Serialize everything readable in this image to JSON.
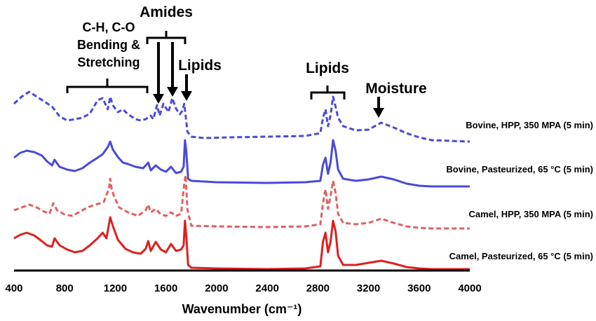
{
  "chart_data": {
    "type": "line",
    "title": "",
    "xlabel": "Wavenumber (cm⁻¹)",
    "ylabel": "",
    "xlim": [
      400,
      4000
    ],
    "x_ticks": [
      400,
      800,
      1200,
      1600,
      2000,
      2400,
      2800,
      3200,
      3600,
      4000
    ],
    "tick_labels": [
      "400",
      "800",
      "1200",
      "1600",
      "2000",
      "2400",
      "2800",
      "3200",
      "3600",
      "4000"
    ],
    "grid": false,
    "legend": "labels at right end of each trace",
    "series": [
      {
        "name": "Bovine, HPP, 350 MPA (5 min)",
        "color": "#4a4ad8",
        "dash": true,
        "points": [
          [
            400,
            148
          ],
          [
            460,
            138
          ],
          [
            520,
            131
          ],
          [
            580,
            138
          ],
          [
            640,
            145
          ],
          [
            700,
            152
          ],
          [
            760,
            166
          ],
          [
            820,
            172
          ],
          [
            880,
            170
          ],
          [
            940,
            168
          ],
          [
            1000,
            162
          ],
          [
            1060,
            143
          ],
          [
            1100,
            140
          ],
          [
            1120,
            148
          ],
          [
            1140,
            156
          ],
          [
            1160,
            138
          ],
          [
            1180,
            150
          ],
          [
            1220,
            160
          ],
          [
            1260,
            156
          ],
          [
            1300,
            163
          ],
          [
            1360,
            170
          ],
          [
            1400,
            172
          ],
          [
            1440,
            170
          ],
          [
            1480,
            165
          ],
          [
            1500,
            170
          ],
          [
            1530,
            150
          ],
          [
            1550,
            165
          ],
          [
            1580,
            148
          ],
          [
            1620,
            160
          ],
          [
            1650,
            140
          ],
          [
            1680,
            155
          ],
          [
            1710,
            163
          ],
          [
            1730,
            158
          ],
          [
            1745,
            148
          ],
          [
            1755,
            165
          ],
          [
            1770,
            188
          ],
          [
            1800,
            195
          ],
          [
            1900,
            197
          ],
          [
            2100,
            196
          ],
          [
            2400,
            195
          ],
          [
            2700,
            194
          ],
          [
            2820,
            190
          ],
          [
            2840,
            168
          ],
          [
            2860,
            156
          ],
          [
            2880,
            180
          ],
          [
            2900,
            165
          ],
          [
            2920,
            138
          ],
          [
            2940,
            152
          ],
          [
            2960,
            168
          ],
          [
            3000,
            180
          ],
          [
            3100,
            186
          ],
          [
            3200,
            185
          ],
          [
            3300,
            175
          ],
          [
            3400,
            182
          ],
          [
            3500,
            190
          ],
          [
            3600,
            196
          ],
          [
            3700,
            200
          ],
          [
            4000,
            202
          ]
        ]
      },
      {
        "name": "Bovine, Pasteurized, 65 °C (5 min)",
        "color": "#4a4ad8",
        "dash": false,
        "points": [
          [
            400,
            225
          ],
          [
            450,
            218
          ],
          [
            500,
            215
          ],
          [
            560,
            217
          ],
          [
            620,
            222
          ],
          [
            660,
            230
          ],
          [
            700,
            236
          ],
          [
            720,
            228
          ],
          [
            760,
            238
          ],
          [
            820,
            242
          ],
          [
            880,
            244
          ],
          [
            940,
            240
          ],
          [
            1000,
            232
          ],
          [
            1060,
            225
          ],
          [
            1100,
            220
          ],
          [
            1140,
            210
          ],
          [
            1160,
            202
          ],
          [
            1180,
            213
          ],
          [
            1220,
            224
          ],
          [
            1260,
            232
          ],
          [
            1300,
            234
          ],
          [
            1360,
            238
          ],
          [
            1420,
            240
          ],
          [
            1460,
            232
          ],
          [
            1480,
            243
          ],
          [
            1520,
            236
          ],
          [
            1560,
            242
          ],
          [
            1600,
            245
          ],
          [
            1640,
            238
          ],
          [
            1680,
            247
          ],
          [
            1720,
            245
          ],
          [
            1740,
            238
          ],
          [
            1750,
            200
          ],
          [
            1760,
            215
          ],
          [
            1775,
            255
          ],
          [
            1800,
            258
          ],
          [
            2000,
            260
          ],
          [
            2400,
            261
          ],
          [
            2700,
            260
          ],
          [
            2820,
            258
          ],
          [
            2840,
            235
          ],
          [
            2860,
            225
          ],
          [
            2880,
            248
          ],
          [
            2900,
            232
          ],
          [
            2920,
            200
          ],
          [
            2940,
            215
          ],
          [
            2960,
            242
          ],
          [
            3000,
            255
          ],
          [
            3100,
            258
          ],
          [
            3200,
            256
          ],
          [
            3300,
            252
          ],
          [
            3400,
            256
          ],
          [
            3500,
            262
          ],
          [
            3600,
            265
          ],
          [
            3700,
            266
          ],
          [
            4000,
            266
          ]
        ]
      },
      {
        "name": "Camel, HPP, 350 MPA (5 min)",
        "color": "#e06060",
        "dash": true,
        "points": [
          [
            400,
            300
          ],
          [
            460,
            296
          ],
          [
            520,
            292
          ],
          [
            580,
            296
          ],
          [
            640,
            302
          ],
          [
            680,
            305
          ],
          [
            710,
            290
          ],
          [
            740,
            300
          ],
          [
            800,
            306
          ],
          [
            860,
            308
          ],
          [
            920,
            302
          ],
          [
            980,
            296
          ],
          [
            1040,
            292
          ],
          [
            1080,
            290
          ],
          [
            1110,
            288
          ],
          [
            1130,
            278
          ],
          [
            1150,
            270
          ],
          [
            1160,
            255
          ],
          [
            1170,
            268
          ],
          [
            1190,
            280
          ],
          [
            1230,
            296
          ],
          [
            1300,
            303
          ],
          [
            1380,
            308
          ],
          [
            1440,
            300
          ],
          [
            1460,
            292
          ],
          [
            1480,
            303
          ],
          [
            1520,
            298
          ],
          [
            1560,
            306
          ],
          [
            1600,
            308
          ],
          [
            1640,
            303
          ],
          [
            1680,
            308
          ],
          [
            1720,
            305
          ],
          [
            1745,
            262
          ],
          [
            1755,
            250
          ],
          [
            1770,
            300
          ],
          [
            1800,
            322
          ],
          [
            2000,
            323
          ],
          [
            2400,
            324
          ],
          [
            2700,
            323
          ],
          [
            2820,
            320
          ],
          [
            2840,
            290
          ],
          [
            2860,
            270
          ],
          [
            2880,
            298
          ],
          [
            2900,
            280
          ],
          [
            2920,
            258
          ],
          [
            2940,
            275
          ],
          [
            2960,
            305
          ],
          [
            3000,
            318
          ],
          [
            3100,
            320
          ],
          [
            3200,
            318
          ],
          [
            3300,
            312
          ],
          [
            3400,
            318
          ],
          [
            3500,
            323
          ],
          [
            3600,
            325
          ],
          [
            3700,
            326
          ],
          [
            4000,
            326
          ]
        ]
      },
      {
        "name": "Camel, Pasteurized, 65 °C (5 min)",
        "color": "#dd2020",
        "dash": false,
        "points": [
          [
            400,
            340
          ],
          [
            450,
            335
          ],
          [
            500,
            332
          ],
          [
            560,
            336
          ],
          [
            620,
            344
          ],
          [
            660,
            350
          ],
          [
            700,
            352
          ],
          [
            720,
            340
          ],
          [
            760,
            350
          ],
          [
            820,
            356
          ],
          [
            880,
            360
          ],
          [
            940,
            358
          ],
          [
            1000,
            350
          ],
          [
            1060,
            340
          ],
          [
            1100,
            332
          ],
          [
            1130,
            340
          ],
          [
            1160,
            310
          ],
          [
            1180,
            322
          ],
          [
            1220,
            342
          ],
          [
            1280,
            355
          ],
          [
            1340,
            360
          ],
          [
            1400,
            362
          ],
          [
            1440,
            355
          ],
          [
            1460,
            344
          ],
          [
            1480,
            358
          ],
          [
            1520,
            345
          ],
          [
            1560,
            356
          ],
          [
            1600,
            360
          ],
          [
            1640,
            348
          ],
          [
            1680,
            358
          ],
          [
            1720,
            356
          ],
          [
            1740,
            350
          ],
          [
            1750,
            315
          ],
          [
            1760,
            335
          ],
          [
            1775,
            378
          ],
          [
            1800,
            382
          ],
          [
            2000,
            383
          ],
          [
            2400,
            384
          ],
          [
            2700,
            383
          ],
          [
            2820,
            380
          ],
          [
            2840,
            345
          ],
          [
            2860,
            332
          ],
          [
            2880,
            360
          ],
          [
            2900,
            345
          ],
          [
            2920,
            315
          ],
          [
            2940,
            330
          ],
          [
            2960,
            365
          ],
          [
            3000,
            378
          ],
          [
            3100,
            378
          ],
          [
            3200,
            375
          ],
          [
            3300,
            372
          ],
          [
            3400,
            376
          ],
          [
            3500,
            381
          ],
          [
            3600,
            383
          ],
          [
            3700,
            384
          ],
          [
            4000,
            384
          ]
        ]
      }
    ],
    "annotations": {
      "ch_co": {
        "lines": [
          "C-H, C-O",
          "Bending &",
          "Stretching"
        ]
      },
      "amides": {
        "text": "Amides"
      },
      "lipids_left": {
        "text": "Lipids"
      },
      "lipids_right": {
        "text": "Lipids"
      },
      "moisture": {
        "text": "Moisture"
      }
    }
  }
}
